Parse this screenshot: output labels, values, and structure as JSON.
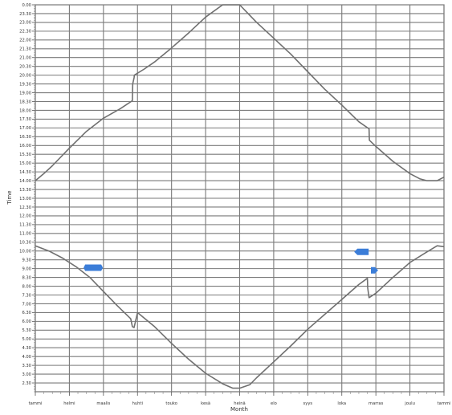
{
  "chart_data": {
    "type": "line",
    "xlabel": "Month",
    "ylabel": "Time",
    "categories": [
      "tammi",
      "helmi",
      "maalis",
      "huhti",
      "touko",
      "kesä",
      "heinä",
      "elo",
      "syys",
      "loka",
      "marras",
      "joulu",
      "tammi"
    ],
    "y_ticks": [
      "2.30",
      "3.00",
      "3.30",
      "4.00",
      "4.30",
      "5.00",
      "5.30",
      "6.00",
      "6.30",
      "7.00",
      "7.30",
      "8.00",
      "8.30",
      "9.00",
      "9.30",
      "10.00",
      "10.30",
      "11.00",
      "11.30",
      "12.00",
      "12.30",
      "13.00",
      "13.30",
      "14.00",
      "14.30",
      "15.00",
      "15.30",
      "16.00",
      "16.30",
      "17.00",
      "17.30",
      "18.00",
      "18.30",
      "19.00",
      "19.30",
      "20.00",
      "20.30",
      "21.00",
      "21.30",
      "22.00",
      "22.30",
      "23.00",
      "23.30",
      "0.00"
    ],
    "ylim": [
      2.0,
      24.0
    ],
    "xlim": [
      0,
      12
    ],
    "grid": true,
    "series": [
      {
        "color": "#707070",
        "x": [
          0,
          0.25,
          0.5,
          1.0,
          1.5,
          2.0,
          2.5,
          2.85,
          2.86,
          2.9,
          2.91,
          3.2,
          3.5,
          4.0,
          4.5,
          5.0,
          5.5,
          5.8,
          6.0,
          6.2,
          6.5,
          7.0,
          7.5,
          8.0,
          8.5,
          9.0,
          9.5,
          9.8,
          9.81,
          10.0,
          10.5,
          11.0,
          11.3,
          11.5,
          11.8,
          12.0
        ],
        "y": [
          14.0,
          14.4,
          14.85,
          15.85,
          16.8,
          17.55,
          18.1,
          18.55,
          19.5,
          19.85,
          20.0,
          20.35,
          20.75,
          21.55,
          22.4,
          23.3,
          24.0,
          24.2,
          24.0,
          23.6,
          23.0,
          22.1,
          21.2,
          20.2,
          19.2,
          18.3,
          17.35,
          16.95,
          16.3,
          15.95,
          15.1,
          14.4,
          14.1,
          14.0,
          14.0,
          14.2
        ]
      },
      {
        "color": "#707070",
        "x": [
          0,
          0.4,
          0.8,
          1.2,
          1.6,
          2.0,
          2.4,
          2.8,
          2.85,
          2.9,
          3.0,
          3.5,
          4.0,
          4.5,
          5.0,
          5.5,
          5.8,
          6.0,
          6.3,
          6.5,
          7.0,
          7.5,
          8.0,
          8.5,
          9.0,
          9.5,
          9.75,
          9.76,
          9.8,
          10.0,
          10.5,
          11.0,
          11.5,
          11.8,
          12.0
        ],
        "y": [
          10.3,
          10.0,
          9.6,
          9.1,
          8.5,
          7.7,
          6.9,
          6.15,
          5.7,
          5.65,
          6.5,
          5.7,
          4.75,
          3.85,
          3.05,
          2.45,
          2.2,
          2.2,
          2.4,
          2.8,
          3.7,
          4.6,
          5.55,
          6.4,
          7.25,
          8.1,
          8.45,
          7.9,
          7.35,
          7.6,
          8.5,
          9.35,
          9.95,
          10.3,
          10.25
        ]
      }
    ],
    "markers": [
      {
        "x": 1.7,
        "y": 9.05,
        "color": "#3b7dd8",
        "shape": "bar"
      },
      {
        "x": 9.6,
        "y": 9.95,
        "color": "#3b7dd8",
        "shape": "bar-left-arrow"
      },
      {
        "x": 9.95,
        "y": 8.9,
        "color": "#3b7dd8",
        "shape": "arrow-right"
      }
    ]
  }
}
